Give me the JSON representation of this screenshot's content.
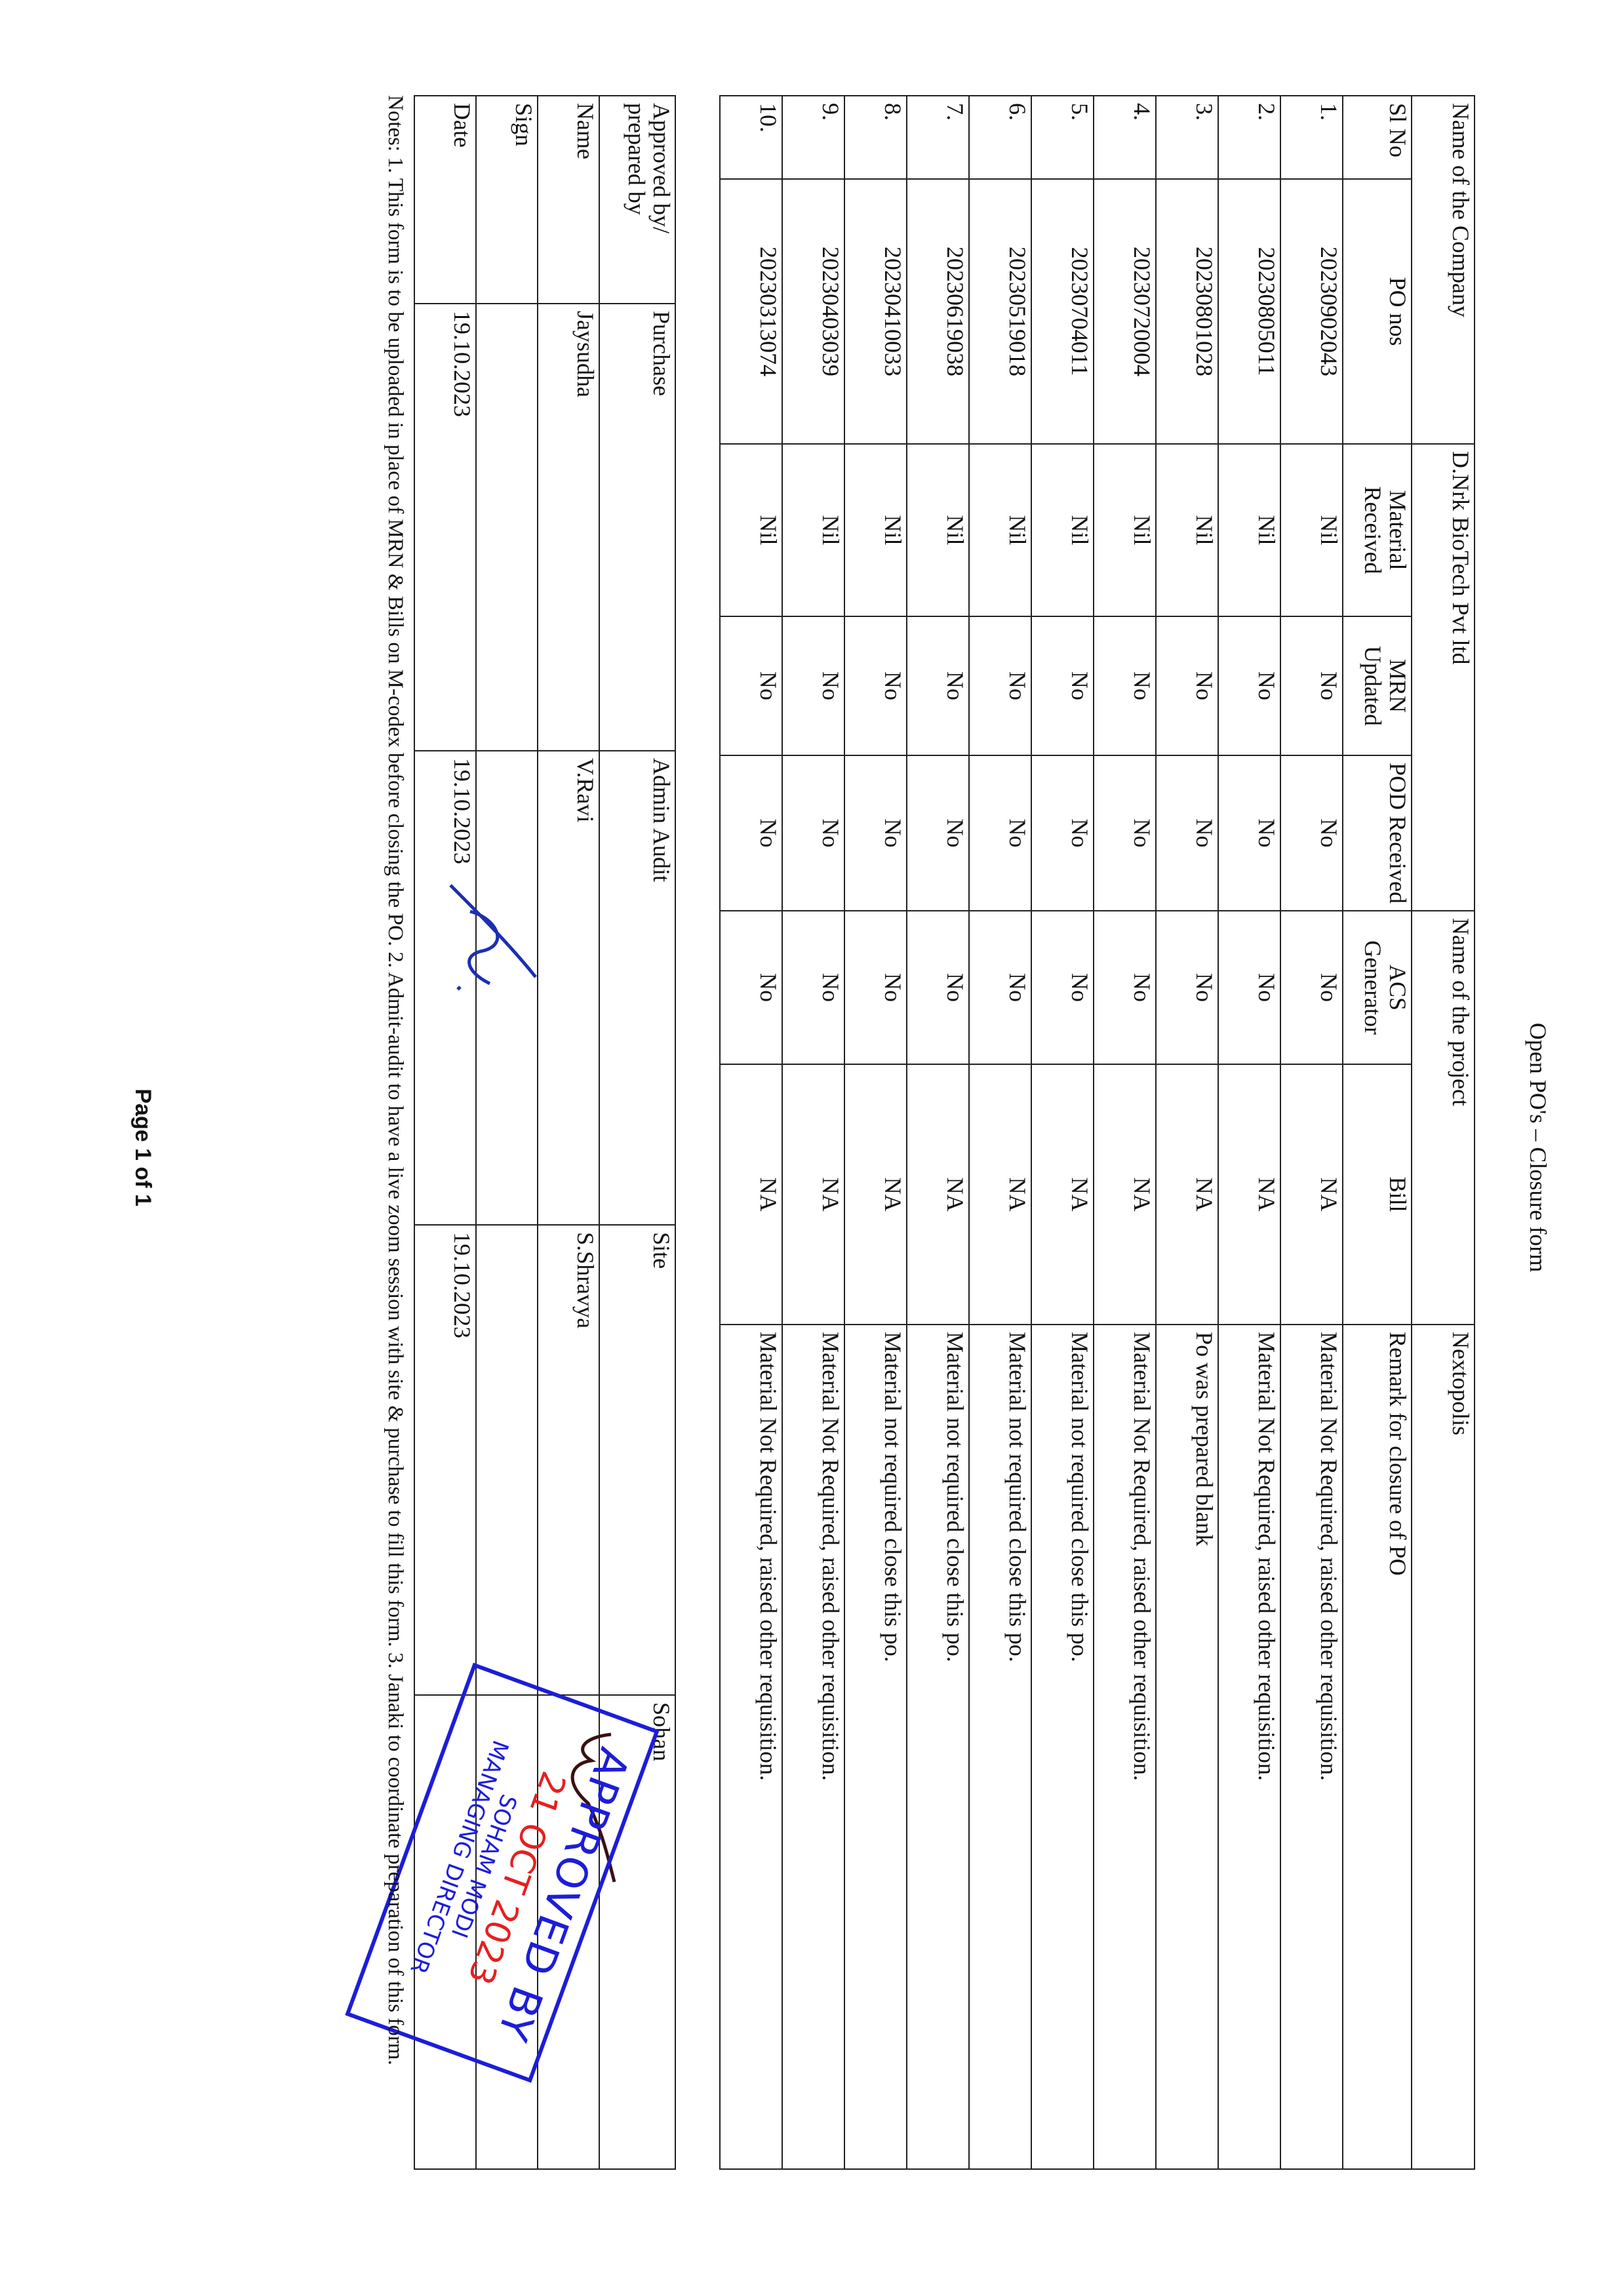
{
  "title": "Open PO's – Closure form",
  "header": {
    "company_label": "Name of the Company",
    "company_value": "D.Nrk BioTech Pvt ltd",
    "project_label": "Name of the project",
    "project_value": "Nextopolis"
  },
  "columns": [
    "Sl No",
    "PO nos",
    "Material Received",
    "MRN Updated",
    "POD Received",
    "ACS Generator",
    "Bill",
    "Remark for closure of PO"
  ],
  "rows": [
    {
      "sl": "1.",
      "po": "20230902043",
      "material": "Nil",
      "mrn": "No",
      "pod": "No",
      "acs": "No",
      "bill": "NA",
      "remark": "Material Not Required, raised other requisition."
    },
    {
      "sl": "2.",
      "po": "20230805011",
      "material": "Nil",
      "mrn": "No",
      "pod": "No",
      "acs": "No",
      "bill": "NA",
      "remark": "Material Not Required, raised other requisition."
    },
    {
      "sl": "3.",
      "po": "20230801028",
      "material": "Nil",
      "mrn": "No",
      "pod": "No",
      "acs": "No",
      "bill": "NA",
      "remark": "Po was  prepared  blank"
    },
    {
      "sl": "4.",
      "po": "20230720004",
      "material": "Nil",
      "mrn": "No",
      "pod": "No",
      "acs": "No",
      "bill": "NA",
      "remark": "Material Not Required, raised other requisition."
    },
    {
      "sl": "5.",
      "po": "20230704011",
      "material": "Nil",
      "mrn": "No",
      "pod": "No",
      "acs": "No",
      "bill": "NA",
      "remark": "Material not required close this po."
    },
    {
      "sl": "6.",
      "po": "20230519018",
      "material": "Nil",
      "mrn": "No",
      "pod": "No",
      "acs": "No",
      "bill": "NA",
      "remark": "Material not required close this po."
    },
    {
      "sl": "7.",
      "po": "20230619038",
      "material": "Nil",
      "mrn": "No",
      "pod": "No",
      "acs": "No",
      "bill": "NA",
      "remark": "Material not required close this po."
    },
    {
      "sl": "8.",
      "po": "20230410033",
      "material": "Nil",
      "mrn": "No",
      "pod": "No",
      "acs": "No",
      "bill": "NA",
      "remark": "Material not required close this po."
    },
    {
      "sl": "9.",
      "po": "20230403039",
      "material": "Nil",
      "mrn": "No",
      "pod": "No",
      "acs": "No",
      "bill": "NA",
      "remark": "Material Not Required, raised other requisition."
    },
    {
      "sl": "10.",
      "po": "20230313074",
      "material": "Nil",
      "mrn": "No",
      "pod": "No",
      "acs": "No",
      "bill": "NA",
      "remark": "Material Not Required, raised other requisition."
    }
  ],
  "approval": {
    "row_labels": [
      "Approved by/ prepared by",
      "Name",
      "Sign",
      "Date"
    ],
    "columns": [
      {
        "role": "Purchase",
        "name": "Jaysudha",
        "date": "19.10.2023"
      },
      {
        "role": "Admin Audit",
        "name": "V.Ravi",
        "date": "19.10.2023"
      },
      {
        "role": "Site",
        "name": "S.Shravya",
        "date": "19.10.2023"
      },
      {
        "role": "Sohan",
        "name": "",
        "date": ""
      }
    ]
  },
  "notes": "Notes: 1. This form is to be uploaded in place of MRN & Bills on M-codex before closing the PO. 2. Admit-audit to have a live zoom session with site & purchase to fill this form. 3. Janaki to coordinate preparation of this form.",
  "stamp": {
    "line1": "APPROVED BY",
    "date": "21 OCT 2023",
    "name": "SOHAM MODI",
    "designation": "MANAGING DIRECTOR",
    "color": "#1d1dd8",
    "date_color": "#e52020"
  },
  "footer": {
    "page": "Page 1 of 1"
  }
}
